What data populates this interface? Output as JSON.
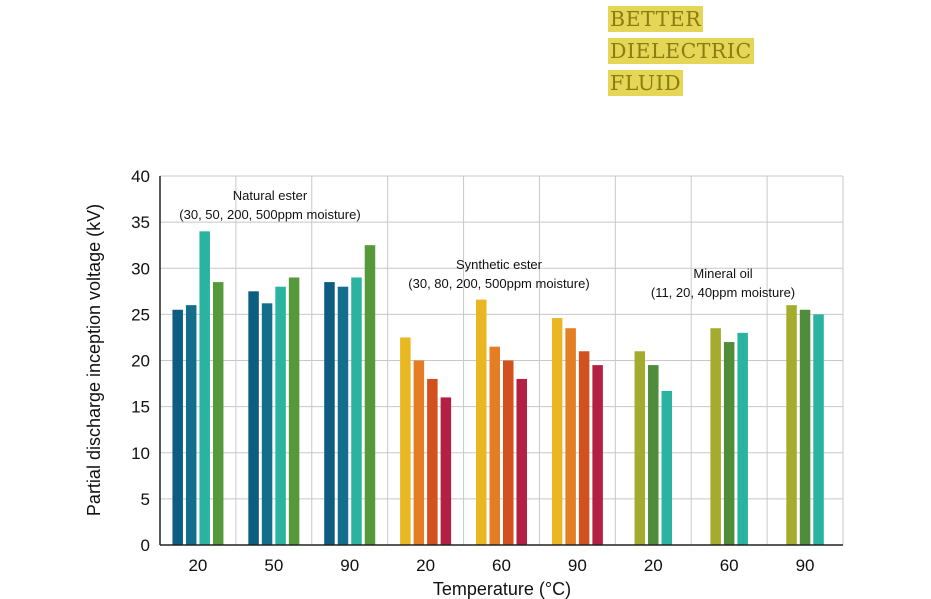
{
  "headline": {
    "line1": "BETTER",
    "line2": "DIELECTRIC",
    "line3": "FLUID"
  },
  "colors": {
    "headline_bg": "#e5d657",
    "headline_text": "#8a7e10"
  },
  "chart_data": {
    "type": "bar",
    "xlabel": "Temperature (°C)",
    "ylabel": "Partial discharge inception voltage (kV)",
    "ylim": [
      0,
      40
    ],
    "yticks": [
      0,
      5,
      10,
      15,
      20,
      25,
      30,
      35,
      40
    ],
    "grid": true,
    "categories": [
      "20",
      "50",
      "90",
      "20",
      "60",
      "90",
      "20",
      "60",
      "90"
    ],
    "groups": [
      {
        "label_line1": "Natural ester",
        "label_line2": "(30, 50, 200, 500ppm moisture)",
        "colors": [
          "#0d5c82",
          "#126e8c",
          "#2ab3a0",
          "#55993a"
        ],
        "temperatures": [
          {
            "temp": "20",
            "values": [
              25.5,
              26,
              34,
              28.5
            ]
          },
          {
            "temp": "50",
            "values": [
              27.5,
              26.2,
              28,
              29
            ]
          },
          {
            "temp": "90",
            "values": [
              28.5,
              28,
              29,
              32.5
            ]
          }
        ]
      },
      {
        "label_line1": "Synthetic ester",
        "label_line2": "(30, 80, 200, 500ppm moisture)",
        "colors": [
          "#e9b722",
          "#e57d24",
          "#d2511f",
          "#b41f44"
        ],
        "temperatures": [
          {
            "temp": "20",
            "values": [
              22.5,
              20,
              18,
              16
            ]
          },
          {
            "temp": "60",
            "values": [
              26.6,
              21.5,
              20,
              18
            ]
          },
          {
            "temp": "90",
            "values": [
              24.6,
              23.5,
              21,
              19.5
            ]
          }
        ]
      },
      {
        "label_line1": "Mineral oil",
        "label_line2": "(11, 20, 40ppm moisture)",
        "colors": [
          "#a4ac2e",
          "#4f8d3a",
          "#2ab3a0"
        ],
        "temperatures": [
          {
            "temp": "20",
            "values": [
              21,
              19.5,
              16.7
            ]
          },
          {
            "temp": "60",
            "values": [
              23.5,
              22,
              23
            ]
          },
          {
            "temp": "90",
            "values": [
              26,
              25.5,
              25
            ]
          }
        ]
      }
    ]
  }
}
